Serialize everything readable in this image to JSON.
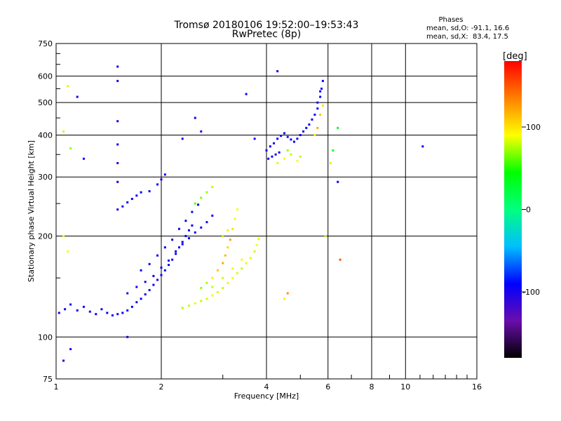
{
  "chart_data": {
    "type": "scatter",
    "title": "Tromsø 20180106 19:52:00–19:53:43",
    "subtitle": "RwPretec (8p)",
    "xlabel": "Frequency [MHz]",
    "ylabel": "Stationary phase Virtual Height [km]",
    "x_scale": "log",
    "y_scale": "log",
    "xlim": [
      1,
      16
    ],
    "ylim": [
      75,
      750
    ],
    "x_ticks": [
      1,
      2,
      4,
      6,
      8,
      10,
      16
    ],
    "y_ticks": [
      75,
      100,
      200,
      300,
      400,
      500,
      600,
      750
    ],
    "grid": true,
    "stats": {
      "heading": "Phases",
      "line_o": "mean, sd,O: -91.1, 16.6",
      "line_x": "mean, sd,X:  83.4, 17.5"
    },
    "colorbar": {
      "label": "[deg]",
      "min": -180,
      "max": 180,
      "ticks": [
        -100,
        0,
        100
      ],
      "colors": [
        "#000000",
        "#6a0dad",
        "#0000ff",
        "#00bfff",
        "#00ff80",
        "#00ff00",
        "#ffff00",
        "#ff8000",
        "#ff0000"
      ]
    },
    "series": [
      {
        "mode": "o",
        "values": [
          [
            1.02,
            118,
            -95
          ],
          [
            1.06,
            121,
            -92
          ],
          [
            1.1,
            125,
            -98
          ],
          [
            1.15,
            120,
            -90
          ],
          [
            1.2,
            123,
            -96
          ],
          [
            1.25,
            119,
            -88
          ],
          [
            1.3,
            117,
            -94
          ],
          [
            1.35,
            121,
            -99
          ],
          [
            1.4,
            118,
            -91
          ],
          [
            1.45,
            116,
            -93
          ],
          [
            1.5,
            117,
            -97
          ],
          [
            1.55,
            118,
            -89
          ],
          [
            1.6,
            120,
            -95
          ],
          [
            1.65,
            123,
            -92
          ],
          [
            1.7,
            127,
            -98
          ],
          [
            1.75,
            130,
            -90
          ],
          [
            1.8,
            134,
            -94
          ],
          [
            1.85,
            138,
            -96
          ],
          [
            1.9,
            143,
            -91
          ],
          [
            1.95,
            148,
            -99
          ],
          [
            2.0,
            153,
            -93
          ],
          [
            2.05,
            158,
            -95
          ],
          [
            2.1,
            164,
            -88
          ],
          [
            2.15,
            170,
            -97
          ],
          [
            2.2,
            177,
            -92
          ],
          [
            2.25,
            185,
            -94
          ],
          [
            2.3,
            192,
            -96
          ],
          [
            2.35,
            200,
            -90
          ],
          [
            2.4,
            208,
            -98
          ],
          [
            2.45,
            215,
            -93
          ],
          [
            1.6,
            135,
            -85
          ],
          [
            1.7,
            141,
            -92
          ],
          [
            1.8,
            146,
            -97
          ],
          [
            1.9,
            152,
            -90
          ],
          [
            2.0,
            161,
            -95
          ],
          [
            2.1,
            169,
            -89
          ],
          [
            2.2,
            180,
            -94
          ],
          [
            2.3,
            189,
            -99
          ],
          [
            2.4,
            197,
            -91
          ],
          [
            2.5,
            205,
            -96
          ],
          [
            2.6,
            212,
            -92
          ],
          [
            2.7,
            220,
            -88
          ],
          [
            2.8,
            230,
            -95
          ],
          [
            1.75,
            158,
            -93
          ],
          [
            1.85,
            165,
            -97
          ],
          [
            1.95,
            175,
            -90
          ],
          [
            2.05,
            185,
            -92
          ],
          [
            2.15,
            195,
            -94
          ],
          [
            2.25,
            210,
            -96
          ],
          [
            2.35,
            222,
            -89
          ],
          [
            2.45,
            236,
            -95
          ],
          [
            2.55,
            248,
            -91
          ],
          [
            1.55,
            245,
            -96
          ],
          [
            1.6,
            252,
            -92
          ],
          [
            1.65,
            258,
            -98
          ],
          [
            1.7,
            264,
            -90
          ],
          [
            1.75,
            270,
            -94
          ],
          [
            1.5,
            240,
            -97
          ],
          [
            1.85,
            272,
            -93
          ],
          [
            1.95,
            285,
            -91
          ],
          [
            2.0,
            295,
            -95
          ],
          [
            2.05,
            305,
            -92
          ],
          [
            4.0,
            360,
            -96
          ],
          [
            4.1,
            370,
            -92
          ],
          [
            4.2,
            378,
            -98
          ],
          [
            4.3,
            390,
            -90
          ],
          [
            4.4,
            398,
            -95
          ],
          [
            4.5,
            405,
            -93
          ],
          [
            4.6,
            395,
            -97
          ],
          [
            4.7,
            388,
            -89
          ],
          [
            4.8,
            382,
            -94
          ],
          [
            4.9,
            390,
            -96
          ],
          [
            5.0,
            400,
            -92
          ],
          [
            5.1,
            410,
            -98
          ],
          [
            5.2,
            420,
            -91
          ],
          [
            5.3,
            430,
            -95
          ],
          [
            5.4,
            445,
            -93
          ],
          [
            5.5,
            460,
            -97
          ],
          [
            5.6,
            480,
            -90
          ],
          [
            5.7,
            520,
            -94
          ],
          [
            5.75,
            550,
            -96
          ],
          [
            5.8,
            580,
            -92
          ],
          [
            4.05,
            340,
            -94
          ],
          [
            4.15,
            345,
            -92
          ],
          [
            4.25,
            350,
            -96
          ],
          [
            4.35,
            355,
            -90
          ],
          [
            5.6,
            500,
            -95
          ],
          [
            5.7,
            540,
            -93
          ],
          [
            1.5,
            580,
            -92
          ],
          [
            1.5,
            640,
            -90
          ],
          [
            1.5,
            440,
            -95
          ],
          [
            1.5,
            375,
            -93
          ],
          [
            1.5,
            330,
            -97
          ],
          [
            1.5,
            290,
            -91
          ],
          [
            1.2,
            340,
            -94
          ],
          [
            1.15,
            520,
            -96
          ],
          [
            2.5,
            450,
            -92
          ],
          [
            2.6,
            410,
            -95
          ],
          [
            2.3,
            390,
            -97
          ],
          [
            3.5,
            530,
            -90
          ],
          [
            4.3,
            620,
            -94
          ],
          [
            3.7,
            390,
            -96
          ],
          [
            6.4,
            290,
            -93
          ],
          [
            11.2,
            370,
            -95
          ],
          [
            1.05,
            85,
            -92
          ],
          [
            1.1,
            92,
            -96
          ],
          [
            1.6,
            100,
            -90
          ]
        ]
      },
      {
        "mode": "x",
        "values": [
          [
            2.3,
            122,
            75
          ],
          [
            2.4,
            124,
            80
          ],
          [
            2.5,
            126,
            85
          ],
          [
            2.6,
            128,
            78
          ],
          [
            2.7,
            130,
            82
          ],
          [
            2.8,
            133,
            88
          ],
          [
            2.9,
            136,
            84
          ],
          [
            3.0,
            140,
            80
          ],
          [
            3.1,
            145,
            86
          ],
          [
            3.2,
            150,
            90
          ],
          [
            3.3,
            155,
            83
          ],
          [
            3.4,
            160,
            79
          ],
          [
            3.5,
            166,
            87
          ],
          [
            3.6,
            172,
            85
          ],
          [
            3.7,
            180,
            81
          ],
          [
            3.75,
            188,
            89
          ],
          [
            3.8,
            196,
            84
          ],
          [
            2.8,
            150,
            95
          ],
          [
            2.9,
            158,
            110
          ],
          [
            3.0,
            166,
            120
          ],
          [
            3.05,
            175,
            115
          ],
          [
            3.1,
            185,
            105
          ],
          [
            3.15,
            195,
            125
          ],
          [
            3.2,
            210,
            100
          ],
          [
            3.25,
            225,
            92
          ],
          [
            3.3,
            240,
            88
          ],
          [
            2.6,
            140,
            70
          ],
          [
            2.7,
            145,
            74
          ],
          [
            2.8,
            141,
            79
          ],
          [
            3.0,
            150,
            82
          ],
          [
            3.2,
            160,
            86
          ],
          [
            3.4,
            170,
            88
          ],
          [
            2.5,
            250,
            60
          ],
          [
            2.6,
            260,
            66
          ],
          [
            2.7,
            270,
            72
          ],
          [
            2.8,
            280,
            78
          ],
          [
            3.0,
            200,
            76
          ],
          [
            3.1,
            208,
            83
          ],
          [
            4.3,
            330,
            85
          ],
          [
            4.5,
            340,
            88
          ],
          [
            4.7,
            350,
            80
          ],
          [
            4.9,
            335,
            90
          ],
          [
            5.0,
            345,
            78
          ],
          [
            4.6,
            360,
            72
          ],
          [
            5.5,
            400,
            95
          ],
          [
            5.6,
            420,
            120
          ],
          [
            5.7,
            460,
            110
          ],
          [
            5.8,
            490,
            100
          ],
          [
            1.05,
            410,
            80
          ],
          [
            1.08,
            560,
            85
          ],
          [
            1.1,
            365,
            70
          ],
          [
            1.08,
            180,
            88
          ],
          [
            1.05,
            200,
            92
          ],
          [
            6.2,
            360,
            40
          ],
          [
            6.1,
            330,
            84
          ],
          [
            5.9,
            200,
            78
          ],
          [
            6.4,
            420,
            30
          ],
          [
            6.5,
            170,
            150
          ],
          [
            4.6,
            135,
            130
          ],
          [
            4.5,
            130,
            95
          ]
        ]
      }
    ]
  }
}
